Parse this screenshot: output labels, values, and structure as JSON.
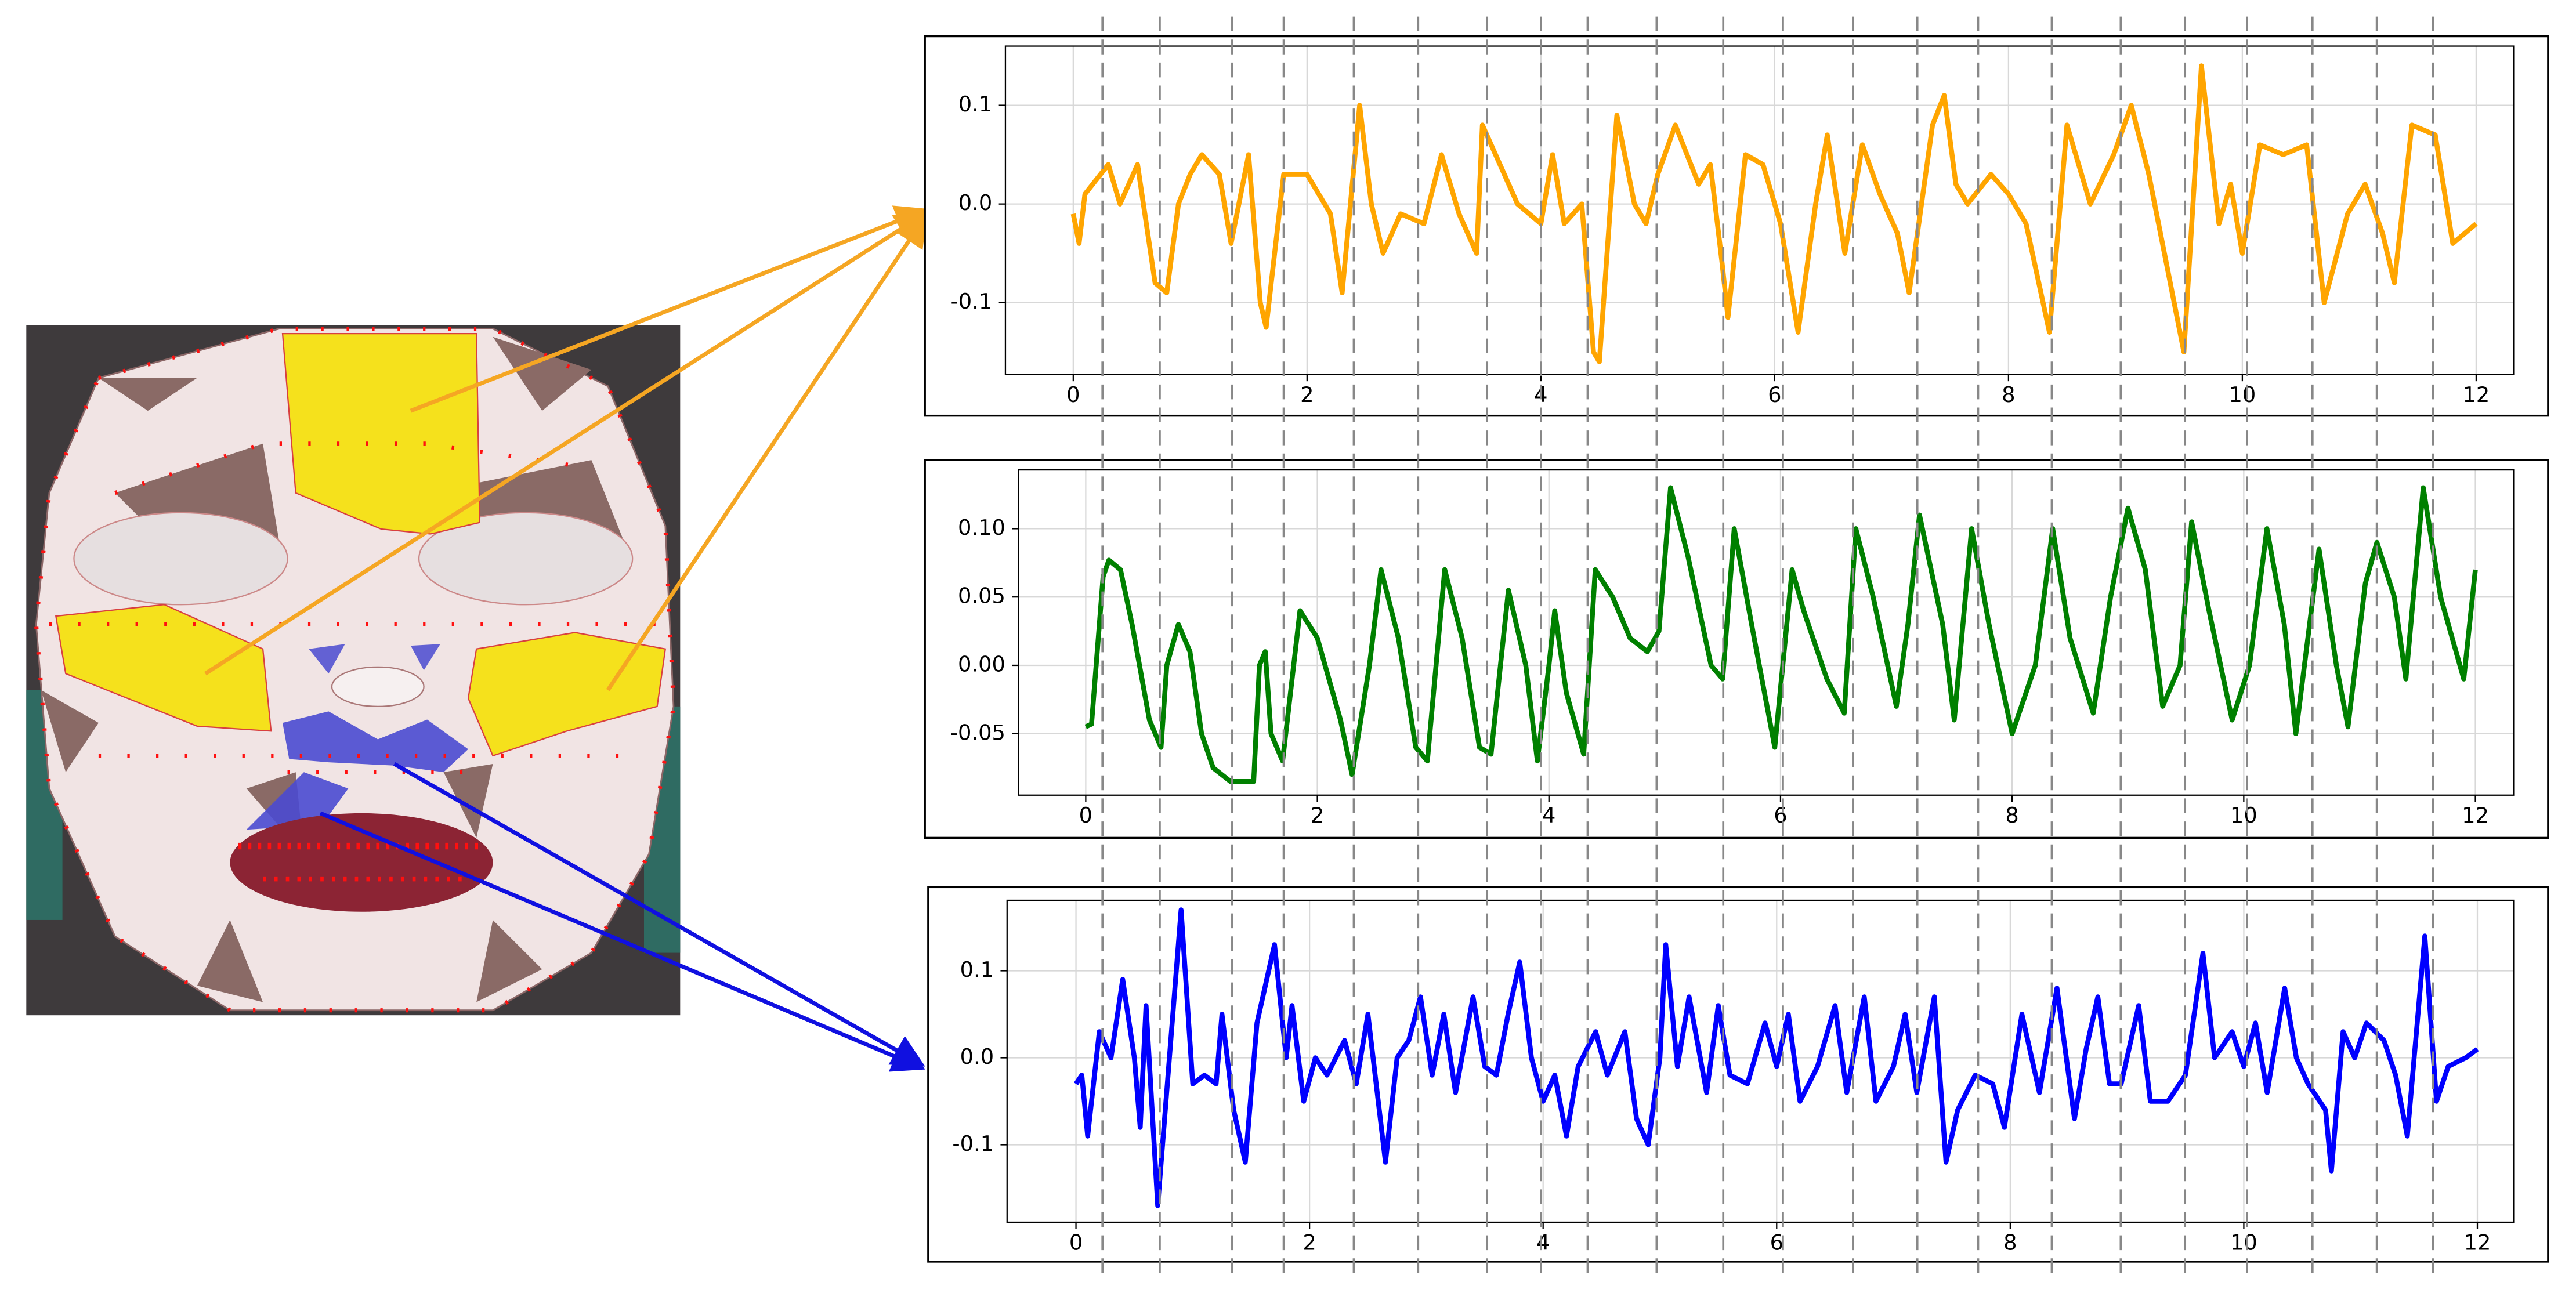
{
  "chart_data": [
    {
      "type": "line",
      "color": "#ffa500",
      "grid": true,
      "xlim": [
        -0.58,
        12.32
      ],
      "ylim": [
        -0.173,
        0.16
      ],
      "xticks": [
        0,
        2,
        4,
        6,
        8,
        10,
        12
      ],
      "yticks": [
        -0.1,
        {
          "value": 0,
          "label": "0.0"
        },
        0.1
      ],
      "vlines": [
        0.25,
        0.74,
        1.36,
        1.8,
        2.4,
        2.95,
        3.54,
        4.0,
        4.4,
        4.99,
        5.56,
        6.07,
        6.67,
        7.22,
        7.74,
        8.37,
        8.96,
        9.51,
        10.04,
        10.6,
        11.15,
        11.63
      ],
      "x": [
        0,
        0.05,
        0.1,
        0.3,
        0.4,
        0.55,
        0.7,
        0.8,
        0.9,
        1.0,
        1.1,
        1.25,
        1.35,
        1.5,
        1.6,
        1.65,
        1.8,
        2.0,
        2.2,
        2.3,
        2.45,
        2.55,
        2.65,
        2.8,
        3.0,
        3.15,
        3.3,
        3.45,
        3.5,
        3.65,
        3.8,
        4.0,
        4.1,
        4.2,
        4.35,
        4.45,
        4.5,
        4.65,
        4.8,
        4.9,
        5.0,
        5.15,
        5.35,
        5.45,
        5.55,
        5.6,
        5.75,
        5.9,
        6.05,
        6.2,
        6.35,
        6.45,
        6.6,
        6.75,
        6.9,
        7.05,
        7.15,
        7.35,
        7.45,
        7.55,
        7.65,
        7.85,
        8.0,
        8.15,
        8.35,
        8.5,
        8.7,
        8.9,
        9.05,
        9.2,
        9.35,
        9.5,
        9.65,
        9.8,
        9.9,
        10.0,
        10.15,
        10.35,
        10.55,
        10.7,
        10.9,
        11.05,
        11.2,
        11.3,
        11.45,
        11.65,
        11.8,
        11.9,
        12.0
      ],
      "values": [
        -0.01,
        -0.04,
        0.01,
        0.04,
        0.0,
        0.04,
        -0.08,
        -0.09,
        0.0,
        0.03,
        0.05,
        0.03,
        -0.04,
        0.05,
        -0.1,
        -0.125,
        0.03,
        0.03,
        -0.01,
        -0.09,
        0.1,
        0.0,
        -0.05,
        -0.01,
        -0.02,
        0.05,
        -0.01,
        -0.05,
        0.08,
        0.04,
        0.0,
        -0.02,
        0.05,
        -0.02,
        0.0,
        -0.15,
        -0.16,
        0.09,
        0.0,
        -0.02,
        0.03,
        0.08,
        0.02,
        0.04,
        -0.06,
        -0.115,
        0.05,
        0.04,
        -0.02,
        -0.13,
        0.0,
        0.07,
        -0.05,
        0.06,
        0.01,
        -0.03,
        -0.09,
        0.08,
        0.11,
        0.02,
        0.0,
        0.03,
        0.01,
        -0.02,
        -0.13,
        0.08,
        0.0,
        0.05,
        0.1,
        0.03,
        -0.06,
        -0.15,
        0.14,
        -0.02,
        0.02,
        -0.05,
        0.06,
        0.05,
        0.06,
        -0.1,
        -0.01,
        0.02,
        -0.03,
        -0.08,
        0.08,
        0.07,
        -0.04,
        -0.03,
        -0.02
      ]
    },
    {
      "type": "line",
      "color": "#008000",
      "grid": true,
      "xlim": [
        -0.58,
        12.33
      ],
      "ylim": [
        -0.095,
        0.143
      ],
      "xticks": [
        0,
        2,
        4,
        6,
        8,
        10,
        12
      ],
      "yticks": [
        -0.05,
        {
          "value": 0,
          "label": "0.00"
        },
        0.05,
        {
          "value": 0.1,
          "label": "0.10"
        }
      ],
      "x": [
        0,
        0.05,
        0.15,
        0.2,
        0.3,
        0.4,
        0.55,
        0.65,
        0.7,
        0.8,
        0.9,
        1.0,
        1.1,
        1.25,
        1.45,
        1.5,
        1.55,
        1.6,
        1.7,
        1.85,
        2.0,
        2.2,
        2.3,
        2.45,
        2.55,
        2.7,
        2.85,
        2.95,
        3.1,
        3.25,
        3.4,
        3.5,
        3.65,
        3.8,
        3.9,
        4.0,
        4.05,
        4.15,
        4.3,
        4.4,
        4.55,
        4.7,
        4.85,
        4.95,
        5.05,
        5.2,
        5.4,
        5.5,
        5.6,
        5.75,
        5.95,
        6.1,
        6.2,
        6.4,
        6.55,
        6.65,
        6.8,
        7.0,
        7.1,
        7.2,
        7.4,
        7.5,
        7.65,
        7.8,
        8.0,
        8.2,
        8.35,
        8.5,
        8.7,
        8.85,
        9.0,
        9.15,
        9.3,
        9.45,
        9.55,
        9.7,
        9.9,
        10.05,
        10.2,
        10.35,
        10.45,
        10.65,
        10.8,
        10.9,
        11.05,
        11.15,
        11.3,
        11.4,
        11.55,
        11.7,
        11.9,
        12.0
      ],
      "values": [
        -0.045,
        -0.043,
        0.065,
        0.077,
        0.07,
        0.03,
        -0.04,
        -0.06,
        0.0,
        0.03,
        0.01,
        -0.05,
        -0.075,
        -0.085,
        -0.085,
        0.0,
        0.01,
        -0.05,
        -0.07,
        0.04,
        0.02,
        -0.04,
        -0.08,
        0.0,
        0.07,
        0.02,
        -0.06,
        -0.07,
        0.07,
        0.02,
        -0.06,
        -0.065,
        0.055,
        0.0,
        -0.07,
        0.0,
        0.04,
        -0.02,
        -0.065,
        0.07,
        0.05,
        0.02,
        0.01,
        0.025,
        0.13,
        0.08,
        0.0,
        -0.01,
        0.1,
        0.03,
        -0.06,
        0.07,
        0.04,
        -0.01,
        -0.035,
        0.1,
        0.05,
        -0.03,
        0.03,
        0.11,
        0.03,
        -0.04,
        0.1,
        0.03,
        -0.05,
        0.0,
        0.1,
        0.02,
        -0.035,
        0.05,
        0.115,
        0.07,
        -0.03,
        0.0,
        0.105,
        0.04,
        -0.04,
        0.0,
        0.1,
        0.03,
        -0.05,
        0.085,
        0.0,
        -0.045,
        0.06,
        0.09,
        0.05,
        -0.01,
        0.13,
        0.05,
        -0.01,
        0.07
      ]
    },
    {
      "type": "line",
      "color": "#0000ff",
      "grid": true,
      "xlim": [
        -0.59,
        12.31
      ],
      "ylim": [
        -0.189,
        0.181
      ],
      "xticks": [
        0,
        2,
        4,
        6,
        8,
        10,
        12
      ],
      "yticks": [
        -0.1,
        {
          "value": 0,
          "label": "0.0"
        },
        0.1
      ],
      "x": [
        0,
        0.05,
        0.1,
        0.2,
        0.3,
        0.4,
        0.5,
        0.55,
        0.6,
        0.7,
        0.8,
        0.9,
        1.0,
        1.1,
        1.2,
        1.25,
        1.35,
        1.45,
        1.55,
        1.7,
        1.8,
        1.85,
        1.95,
        2.05,
        2.15,
        2.3,
        2.4,
        2.5,
        2.65,
        2.75,
        2.85,
        2.95,
        3.05,
        3.15,
        3.25,
        3.4,
        3.5,
        3.6,
        3.7,
        3.8,
        3.9,
        4.0,
        4.1,
        4.2,
        4.3,
        4.45,
        4.55,
        4.7,
        4.8,
        4.9,
        5.0,
        5.05,
        5.15,
        5.25,
        5.4,
        5.5,
        5.6,
        5.75,
        5.9,
        6.0,
        6.1,
        6.2,
        6.35,
        6.5,
        6.6,
        6.75,
        6.85,
        7.0,
        7.1,
        7.2,
        7.35,
        7.45,
        7.55,
        7.7,
        7.85,
        7.95,
        8.1,
        8.25,
        8.4,
        8.55,
        8.65,
        8.75,
        8.85,
        8.95,
        9.1,
        9.2,
        9.35,
        9.5,
        9.65,
        9.75,
        9.9,
        10.0,
        10.1,
        10.2,
        10.35,
        10.45,
        10.55,
        10.7,
        10.75,
        10.85,
        10.95,
        11.05,
        11.2,
        11.3,
        11.4,
        11.55,
        11.65,
        11.75,
        11.9,
        12.0
      ],
      "values": [
        -0.03,
        -0.02,
        -0.09,
        0.03,
        0.0,
        0.09,
        0.0,
        -0.08,
        0.06,
        -0.17,
        0.0,
        0.17,
        -0.03,
        -0.02,
        -0.03,
        0.05,
        -0.06,
        -0.12,
        0.04,
        0.13,
        0.0,
        0.06,
        -0.05,
        0.0,
        -0.02,
        0.02,
        -0.03,
        0.05,
        -0.12,
        0.0,
        0.02,
        0.07,
        -0.02,
        0.05,
        -0.04,
        0.07,
        -0.01,
        -0.02,
        0.05,
        0.11,
        0.0,
        -0.05,
        -0.02,
        -0.09,
        -0.01,
        0.03,
        -0.02,
        0.03,
        -0.07,
        -0.1,
        0.0,
        0.13,
        -0.01,
        0.07,
        -0.04,
        0.06,
        -0.02,
        -0.03,
        0.04,
        -0.01,
        0.05,
        -0.05,
        -0.01,
        0.06,
        -0.04,
        0.07,
        -0.05,
        -0.01,
        0.05,
        -0.04,
        0.07,
        -0.12,
        -0.06,
        -0.02,
        -0.03,
        -0.08,
        0.05,
        -0.04,
        0.08,
        -0.07,
        0.01,
        0.07,
        -0.03,
        -0.03,
        0.06,
        -0.05,
        -0.05,
        -0.02,
        0.12,
        0.0,
        0.03,
        -0.01,
        0.04,
        -0.04,
        0.08,
        0.0,
        -0.03,
        -0.06,
        -0.13,
        0.03,
        0.0,
        0.04,
        0.02,
        -0.02,
        -0.09,
        0.14,
        -0.05,
        -0.01,
        0.0,
        0.01
      ]
    }
  ]
}
